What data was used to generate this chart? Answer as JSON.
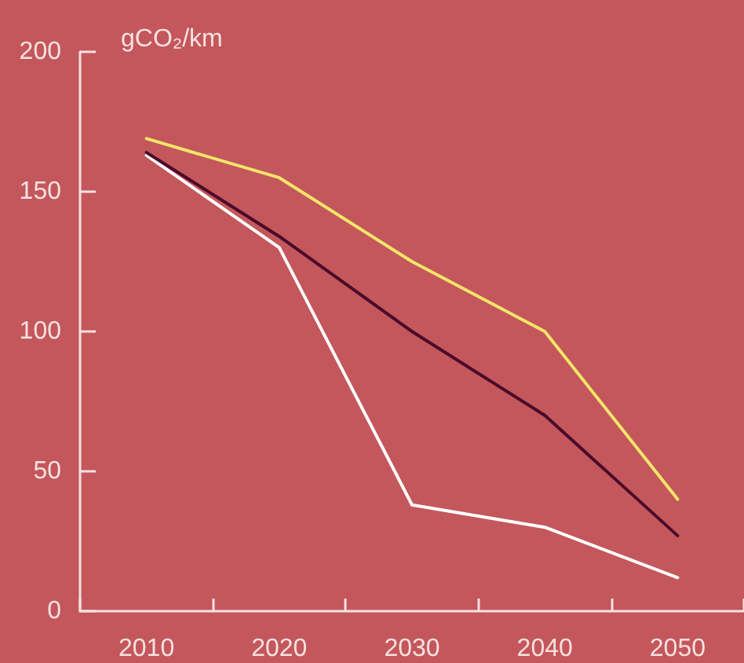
{
  "chart_data": {
    "type": "line",
    "ylabel": "gCO₂/km",
    "categories": [
      "2010",
      "2020",
      "2030",
      "2040",
      "2050"
    ],
    "series": [
      {
        "color": "#f2e56a",
        "values": [
          169,
          155,
          125,
          100,
          40
        ]
      },
      {
        "color": "#4a0a2a",
        "values": [
          164,
          134,
          100,
          70,
          27
        ]
      },
      {
        "color": "#ffffff",
        "values": [
          163,
          130,
          38,
          30,
          12
        ]
      }
    ],
    "ylim": [
      0,
      200
    ],
    "yticks": [
      0,
      50,
      100,
      150,
      200
    ],
    "grid": false,
    "marker": "none",
    "line_style": "solid"
  }
}
